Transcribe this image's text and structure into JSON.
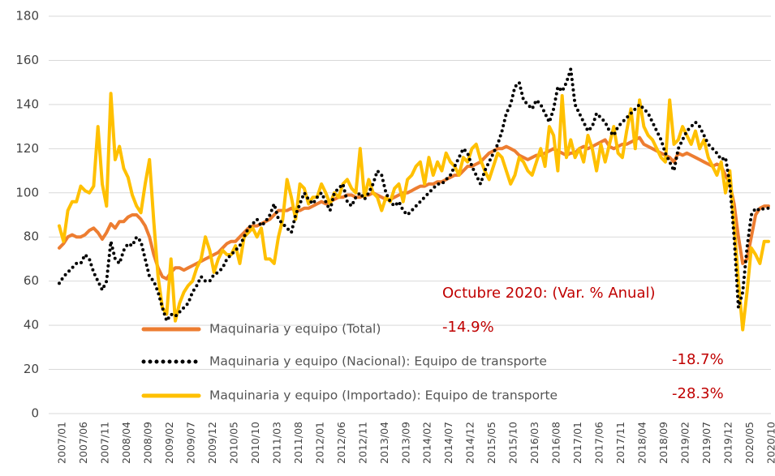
{
  "chart_data": {
    "type": "line",
    "categories": [
      "2007/01",
      null,
      null,
      null,
      null,
      "2007/06",
      null,
      null,
      null,
      null,
      "2007/11",
      null,
      null,
      null,
      null,
      "2008/04",
      null,
      null,
      null,
      null,
      "2008/09",
      null,
      null,
      null,
      null,
      "2009/02",
      null,
      null,
      null,
      null,
      "2009/07",
      null,
      null,
      null,
      null,
      "2009/12",
      null,
      null,
      null,
      null,
      "2010/05",
      null,
      null,
      null,
      null,
      "2010/10",
      null,
      null,
      null,
      null,
      "2011/03",
      null,
      null,
      null,
      null,
      "2011/08",
      null,
      null,
      null,
      null,
      "2012/01",
      null,
      null,
      null,
      null,
      "2012/06",
      null,
      null,
      null,
      null,
      "2012/11",
      null,
      null,
      null,
      null,
      "2013/04",
      null,
      null,
      null,
      null,
      "2013/09",
      null,
      null,
      null,
      null,
      "2014/02",
      null,
      null,
      null,
      null,
      "2014/07",
      null,
      null,
      null,
      null,
      "2014/12",
      null,
      null,
      null,
      null,
      "2015/05",
      null,
      null,
      null,
      null,
      "2015/10",
      null,
      null,
      null,
      null,
      "2016/03",
      null,
      null,
      null,
      null,
      "2016/08",
      null,
      null,
      null,
      null,
      "2017/01",
      null,
      null,
      null,
      null,
      "2017/06",
      null,
      null,
      null,
      null,
      "2017/11",
      null,
      null,
      null,
      null,
      "2018/04",
      null,
      null,
      null,
      null,
      "2018/09",
      null,
      null,
      null,
      null,
      "2019/02",
      null,
      null,
      null,
      null,
      "2019/07",
      null,
      null,
      null,
      null,
      "2019/12",
      null,
      null,
      null,
      null,
      "2020/05",
      null,
      null,
      null,
      null,
      "2020/10"
    ],
    "series": [
      {
        "name": "Maquinaria y equipo (Total)",
        "color": "#ED7D31",
        "style": "solid",
        "values": [
          75,
          77,
          80,
          81,
          80,
          80,
          81,
          83,
          84,
          82,
          79,
          82,
          86,
          84,
          87,
          87,
          89,
          90,
          90,
          88,
          85,
          80,
          72,
          66,
          62,
          61,
          64,
          66,
          66,
          65,
          66,
          67,
          68,
          69,
          70,
          71,
          72,
          73,
          75,
          77,
          78,
          78,
          80,
          82,
          84,
          85,
          85,
          86,
          87,
          88,
          90,
          92,
          92,
          92,
          93,
          92,
          92,
          93,
          93,
          94,
          95,
          96,
          95,
          96,
          97,
          98,
          98,
          99,
          99,
          98,
          98,
          99,
          99,
          100,
          99,
          98,
          97,
          97,
          98,
          99,
          100,
          100,
          101,
          102,
          103,
          103,
          104,
          104,
          105,
          105,
          106,
          107,
          108,
          108,
          110,
          112,
          112,
          113,
          114,
          116,
          118,
          119,
          120,
          120,
          121,
          120,
          119,
          117,
          116,
          115,
          116,
          117,
          117,
          118,
          119,
          120,
          119,
          118,
          117,
          118,
          118,
          120,
          121,
          120,
          121,
          122,
          123,
          124,
          121,
          120,
          121,
          122,
          122,
          123,
          124,
          125,
          122,
          121,
          120,
          119,
          118,
          117,
          116,
          114,
          118,
          117,
          118,
          117,
          116,
          115,
          114,
          113,
          112,
          113,
          112,
          108,
          104,
          95,
          80,
          68,
          70,
          80,
          90,
          93,
          94,
          94
        ],
        "value_label": "-14.9%"
      },
      {
        "name": "Maquinaria y equipo (Nacional): Equipo de transporte",
        "color": "#000000",
        "style": "dotted",
        "values": [
          59,
          62,
          64,
          66,
          68,
          68,
          72,
          70,
          64,
          60,
          56,
          60,
          78,
          70,
          68,
          74,
          77,
          76,
          80,
          78,
          70,
          62,
          60,
          55,
          48,
          42,
          45,
          44,
          46,
          48,
          50,
          55,
          58,
          62,
          60,
          60,
          63,
          64,
          66,
          70,
          72,
          74,
          76,
          80,
          84,
          86,
          88,
          85,
          87,
          90,
          95,
          88,
          86,
          84,
          82,
          90,
          95,
          100,
          97,
          95,
          98,
          100,
          96,
          92,
          100,
          102,
          104,
          96,
          94,
          98,
          100,
          97,
          100,
          104,
          110,
          108,
          100,
          96,
          94,
          96,
          92,
          90,
          92,
          94,
          96,
          98,
          100,
          102,
          104,
          104,
          106,
          108,
          112,
          116,
          120,
          118,
          112,
          108,
          104,
          110,
          114,
          118,
          122,
          128,
          136,
          140,
          148,
          150,
          142,
          140,
          138,
          142,
          140,
          136,
          132,
          138,
          148,
          146,
          150,
          156,
          140,
          136,
          132,
          128,
          130,
          136,
          134,
          132,
          128,
          126,
          130,
          132,
          134,
          136,
          138,
          140,
          138,
          136,
          132,
          128,
          124,
          118,
          114,
          110,
          120,
          124,
          128,
          130,
          132,
          130,
          126,
          122,
          120,
          118,
          115,
          116,
          104,
          80,
          48,
          55,
          75,
          90,
          93,
          92,
          93,
          93
        ],
        "value_label": "-18.7%"
      },
      {
        "name": "Maquinaria y equipo (Importado): Equipo de transporte",
        "color": "#FFC000",
        "style": "solid",
        "values": [
          85,
          78,
          92,
          96,
          96,
          103,
          101,
          100,
          103,
          130,
          104,
          94,
          145,
          115,
          121,
          111,
          107,
          99,
          94,
          91,
          104,
          115,
          87,
          62,
          48,
          45,
          70,
          42,
          50,
          55,
          58,
          60,
          66,
          70,
          80,
          74,
          64,
          70,
          74,
          72,
          72,
          76,
          68,
          80,
          82,
          84,
          80,
          84,
          70,
          70,
          68,
          80,
          88,
          106,
          98,
          88,
          104,
          102,
          95,
          98,
          98,
          104,
          100,
          95,
          100,
          98,
          104,
          106,
          102,
          100,
          120,
          98,
          106,
          100,
          98,
          92,
          98,
          96,
          102,
          104,
          96,
          106,
          108,
          112,
          114,
          104,
          116,
          108,
          114,
          110,
          118,
          114,
          112,
          108,
          116,
          114,
          120,
          122,
          115,
          110,
          106,
          112,
          118,
          116,
          110,
          104,
          108,
          116,
          114,
          110,
          108,
          114,
          120,
          112,
          130,
          126,
          110,
          144,
          116,
          124,
          116,
          120,
          114,
          126,
          120,
          110,
          122,
          114,
          122,
          130,
          118,
          116,
          128,
          138,
          120,
          142,
          130,
          126,
          124,
          120,
          116,
          114,
          142,
          122,
          124,
          130,
          126,
          122,
          128,
          120,
          124,
          116,
          112,
          108,
          114,
          100,
          110,
          86,
          60,
          38,
          55,
          75,
          72,
          68,
          78,
          78
        ],
        "value_label": "-28.3%"
      }
    ],
    "annotation": "Octubre 2020: (Var. % Anual)",
    "ylim": [
      0,
      180
    ],
    "yticks": [
      0,
      20,
      40,
      60,
      80,
      100,
      120,
      140,
      160,
      180
    ],
    "grid": true
  }
}
